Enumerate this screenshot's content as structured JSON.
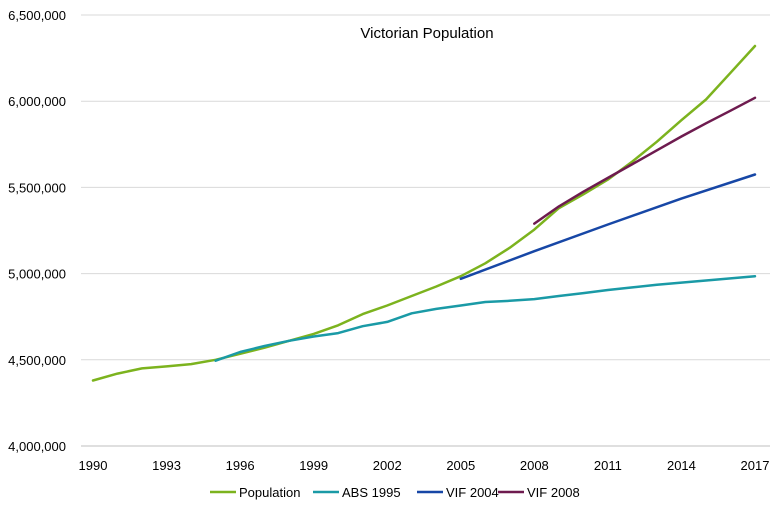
{
  "chart_data": {
    "type": "line",
    "title": "Victorian Population",
    "xlabel": "",
    "ylabel": "",
    "x_ticks": [
      "1990",
      "1993",
      "1996",
      "1999",
      "2002",
      "2005",
      "2008",
      "2011",
      "2014",
      "2017"
    ],
    "x_tick_values": [
      1990,
      1993,
      1996,
      1999,
      2002,
      2005,
      2008,
      2011,
      2014,
      2017
    ],
    "y_ticks": [
      "4,000,000",
      "4,500,000",
      "5,000,000",
      "5,500,000",
      "6,000,000",
      "6,500,000"
    ],
    "y_tick_values": [
      4000000,
      4500000,
      5000000,
      5500000,
      6000000,
      6500000
    ],
    "xlim": [
      1990,
      2017
    ],
    "ylim": [
      4000000,
      6500000
    ],
    "grid": "horizontal",
    "legend_position": "bottom",
    "series": [
      {
        "name": "Population",
        "color": "#7CB31E",
        "x": [
          1990,
          1991,
          1992,
          1993,
          1994,
          1995,
          1996,
          1997,
          1998,
          1999,
          2000,
          2001,
          2002,
          2003,
          2004,
          2005,
          2006,
          2007,
          2008,
          2009,
          2010,
          2011,
          2012,
          2013,
          2014,
          2015,
          2016,
          2017
        ],
        "values": [
          4380000,
          4420000,
          4450000,
          4462000,
          4475000,
          4500000,
          4535000,
          4570000,
          4610000,
          4650000,
          4700000,
          4765000,
          4815000,
          4870000,
          4925000,
          4985000,
          5060000,
          5150000,
          5255000,
          5380000,
          5460000,
          5545000,
          5650000,
          5765000,
          5890000,
          6010000,
          6165000,
          6320000
        ]
      },
      {
        "name": "ABS 1995",
        "color": "#1A9AA6",
        "x": [
          1995,
          1996,
          1997,
          1998,
          1999,
          2000,
          2001,
          2002,
          2003,
          2004,
          2005,
          2006,
          2007,
          2008,
          2009,
          2010,
          2011,
          2012,
          2013,
          2014,
          2015,
          2016,
          2017
        ],
        "values": [
          4495000,
          4545000,
          4580000,
          4610000,
          4635000,
          4655000,
          4695000,
          4720000,
          4770000,
          4795000,
          4815000,
          4835000,
          4842000,
          4852000,
          4870000,
          4887000,
          4905000,
          4920000,
          4935000,
          4948000,
          4960000,
          4972000,
          4985000
        ]
      },
      {
        "name": "VIF 2004",
        "color": "#1747A6",
        "x": [
          2005,
          2008,
          2011,
          2014,
          2017
        ],
        "values": [
          4970000,
          5130000,
          5285000,
          5435000,
          5575000
        ]
      },
      {
        "name": "VIF 2008",
        "color": "#6E1B4F",
        "x": [
          2008,
          2009,
          2010,
          2011,
          2012,
          2013,
          2014,
          2015,
          2016,
          2017
        ],
        "values": [
          5290000,
          5390000,
          5475000,
          5555000,
          5635000,
          5715000,
          5795000,
          5872000,
          5945000,
          6020000
        ]
      }
    ]
  }
}
